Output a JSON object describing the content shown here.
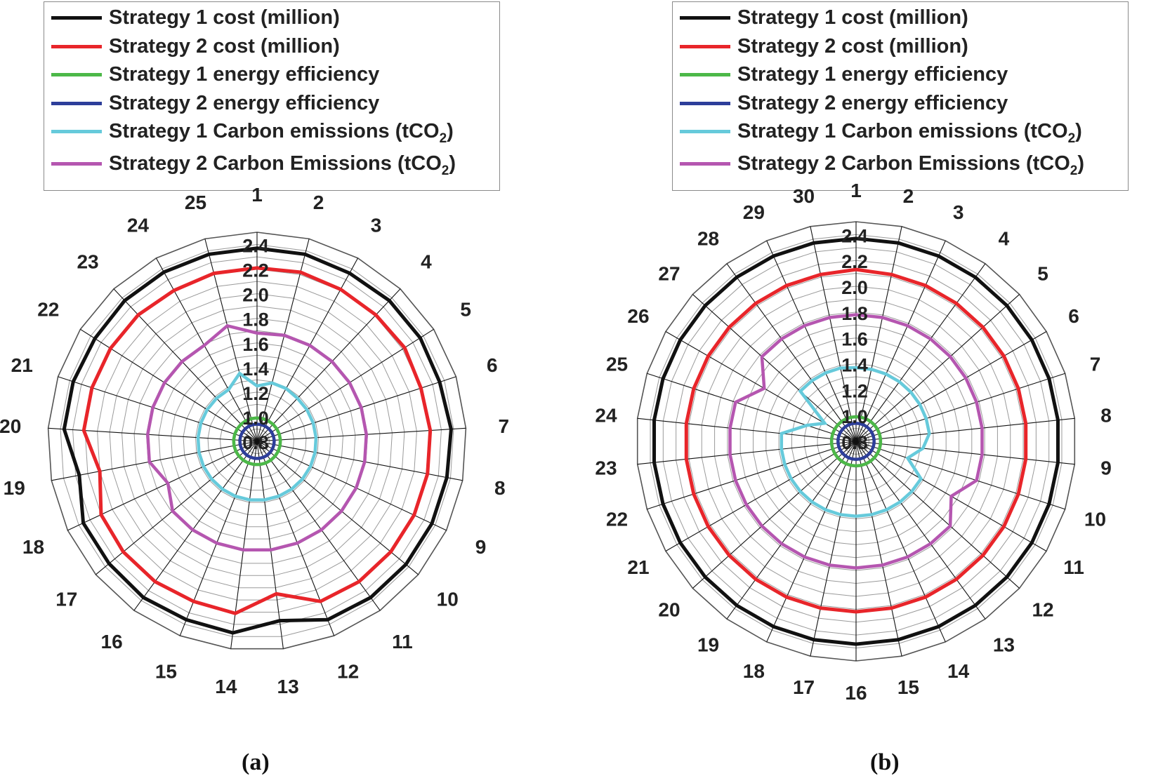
{
  "legend": [
    {
      "prefix": "Strategy 1 cost  (million)",
      "sub": "",
      "suffix": "",
      "color": "#111111"
    },
    {
      "prefix": "Strategy 2 cost (million)",
      "sub": "",
      "suffix": "",
      "color": "#e8252a"
    },
    {
      "prefix": "Strategy 1 energy efficiency",
      "sub": "",
      "suffix": "",
      "color": "#4cb848"
    },
    {
      "prefix": "Strategy 2 energy efficiency",
      "sub": "",
      "suffix": "",
      "color": "#2d3e9a"
    },
    {
      "prefix": "Strategy 1 Carbon emissions (tCO",
      "sub": "2",
      "suffix": ")",
      "color": "#66cadb"
    },
    {
      "prefix": "Strategy 2 Carbon Emissions (tCO",
      "sub": "2",
      "suffix": ")",
      "color": "#b556b0"
    }
  ],
  "chart_data": [
    {
      "type": "radar",
      "panel_label": "(a)",
      "spokes": [
        "1",
        "2",
        "3",
        "4",
        "5",
        "6",
        "7",
        "8",
        "9",
        "10",
        "11",
        "12",
        "13",
        "14",
        "15",
        "16",
        "17",
        "18",
        "19",
        "20",
        "21",
        "22",
        "23",
        "24",
        "25"
      ],
      "radial_ticks": [
        "0.8",
        "1.0",
        "1.2",
        "1.4",
        "1.6",
        "1.8",
        "2.0",
        "2.2",
        "2.4"
      ],
      "rmin": 0.8,
      "rmax": 2.5,
      "series": [
        {
          "name": "Strategy 1 cost  (million)",
          "color": "#111111",
          "values": [
            2.37,
            2.37,
            2.36,
            2.37,
            2.37,
            2.36,
            2.38,
            2.37,
            2.37,
            2.37,
            2.37,
            2.36,
            2.27,
            2.37,
            2.36,
            2.37,
            2.36,
            2.36,
            2.27,
            2.37,
            2.37,
            2.36,
            2.37,
            2.37,
            2.37
          ]
        },
        {
          "name": "Strategy 2 cost (million)",
          "color": "#e8252a",
          "values": [
            2.21,
            2.22,
            2.21,
            2.21,
            2.22,
            2.2,
            2.21,
            2.21,
            2.21,
            2.21,
            2.21,
            2.2,
            2.05,
            2.21,
            2.2,
            2.21,
            2.21,
            2.2,
            2.1,
            2.21,
            2.21,
            2.21,
            2.21,
            2.2,
            2.21
          ]
        },
        {
          "name": "Strategy 1 energy efficiency",
          "color": "#4cb848",
          "values": [
            0.99,
            0.99,
            0.99,
            0.99,
            0.99,
            0.99,
            0.99,
            0.99,
            0.99,
            0.99,
            0.99,
            0.99,
            0.99,
            0.99,
            0.99,
            0.99,
            0.99,
            0.99,
            0.99,
            0.99,
            0.99,
            0.99,
            0.99,
            0.99,
            0.99
          ]
        },
        {
          "name": "Strategy 2 energy efficiency",
          "color": "#2d3e9a",
          "values": [
            0.94,
            0.94,
            0.94,
            0.94,
            0.94,
            0.94,
            0.94,
            0.94,
            0.94,
            0.94,
            0.94,
            0.94,
            0.94,
            0.94,
            0.94,
            0.94,
            0.94,
            0.94,
            0.94,
            0.94,
            0.94,
            0.94,
            0.94,
            0.94,
            0.94
          ]
        },
        {
          "name": "Strategy 1 Carbon emissions (tCO2)",
          "color": "#66cadb",
          "values": [
            1.25,
            1.29,
            1.29,
            1.28,
            1.28,
            1.28,
            1.28,
            1.28,
            1.28,
            1.28,
            1.28,
            1.28,
            1.28,
            1.28,
            1.28,
            1.28,
            1.28,
            1.28,
            1.28,
            1.28,
            1.28,
            1.28,
            1.28,
            1.28,
            1.37
          ]
        },
        {
          "name": "Strategy 2 Carbon Emissions (tCO2)",
          "color": "#b556b0",
          "values": [
            1.68,
            1.69,
            1.69,
            1.69,
            1.69,
            1.69,
            1.69,
            1.69,
            1.69,
            1.69,
            1.69,
            1.69,
            1.69,
            1.69,
            1.69,
            1.69,
            1.69,
            1.6,
            1.69,
            1.69,
            1.69,
            1.69,
            1.69,
            1.69,
            1.77
          ]
        }
      ]
    },
    {
      "type": "radar",
      "panel_label": "(b)",
      "spokes": [
        "1",
        "2",
        "3",
        "4",
        "5",
        "6",
        "7",
        "8",
        "9",
        "10",
        "11",
        "12",
        "13",
        "14",
        "15",
        "16",
        "17",
        "18",
        "19",
        "20",
        "21",
        "22",
        "23",
        "24",
        "25",
        "26",
        "27",
        "28",
        "29",
        "30"
      ],
      "radial_ticks": [
        "0.8",
        "1.0",
        "1.2",
        "1.4",
        "1.6",
        "1.8",
        "2.0",
        "2.2",
        "2.4"
      ],
      "rmin": 0.8,
      "rmax": 2.5,
      "series": [
        {
          "name": "Strategy 1 cost  (million)",
          "color": "#111111",
          "values": [
            2.37,
            2.37,
            2.37,
            2.37,
            2.37,
            2.37,
            2.37,
            2.37,
            2.37,
            2.37,
            2.37,
            2.37,
            2.37,
            2.37,
            2.37,
            2.37,
            2.37,
            2.37,
            2.37,
            2.37,
            2.37,
            2.37,
            2.37,
            2.37,
            2.37,
            2.37,
            2.37,
            2.37,
            2.37,
            2.37
          ]
        },
        {
          "name": "Strategy 2 cost (million)",
          "color": "#e8252a",
          "values": [
            2.13,
            2.12,
            2.12,
            2.12,
            2.12,
            2.12,
            2.12,
            2.12,
            2.12,
            2.12,
            2.12,
            2.12,
            2.12,
            2.12,
            2.12,
            2.12,
            2.12,
            2.12,
            2.12,
            2.12,
            2.12,
            2.12,
            2.12,
            2.12,
            2.12,
            2.12,
            2.12,
            2.12,
            2.12,
            2.12
          ]
        },
        {
          "name": "Strategy 1 energy efficiency",
          "color": "#4cb848",
          "values": [
            0.99,
            0.99,
            0.99,
            0.99,
            0.99,
            0.99,
            0.99,
            0.99,
            0.99,
            0.99,
            0.99,
            0.99,
            0.99,
            0.99,
            0.99,
            0.99,
            0.99,
            0.99,
            0.99,
            0.99,
            0.99,
            0.99,
            0.99,
            0.99,
            0.99,
            0.99,
            0.99,
            0.99,
            0.99,
            0.99
          ]
        },
        {
          "name": "Strategy 2 energy efficiency",
          "color": "#2d3e9a",
          "values": [
            0.94,
            0.94,
            0.94,
            0.94,
            0.94,
            0.94,
            0.94,
            0.94,
            0.94,
            0.94,
            0.94,
            0.94,
            0.94,
            0.94,
            0.94,
            0.94,
            0.94,
            0.94,
            0.94,
            0.94,
            0.94,
            0.94,
            0.94,
            0.94,
            0.94,
            0.94,
            0.94,
            0.94,
            0.94,
            0.94
          ]
        },
        {
          "name": "Strategy 1 Carbon emissions (tCO2)",
          "color": "#66cadb",
          "values": [
            1.37,
            1.37,
            1.37,
            1.37,
            1.37,
            1.37,
            1.37,
            1.37,
            1.32,
            1.22,
            1.38,
            1.38,
            1.38,
            1.38,
            1.38,
            1.38,
            1.38,
            1.38,
            1.38,
            1.38,
            1.38,
            1.38,
            1.38,
            1.38,
            1.2,
            1.08,
            1.38,
            1.38,
            1.38,
            1.38
          ]
        },
        {
          "name": "Strategy 2 Carbon Emissions (tCO2)",
          "color": "#b556b0",
          "values": [
            1.78,
            1.78,
            1.78,
            1.78,
            1.78,
            1.78,
            1.78,
            1.78,
            1.78,
            1.78,
            1.65,
            1.78,
            1.78,
            1.78,
            1.78,
            1.78,
            1.78,
            1.78,
            1.78,
            1.78,
            1.78,
            1.78,
            1.78,
            1.78,
            1.78,
            1.62,
            1.78,
            1.78,
            1.78,
            1.78
          ]
        }
      ]
    }
  ]
}
